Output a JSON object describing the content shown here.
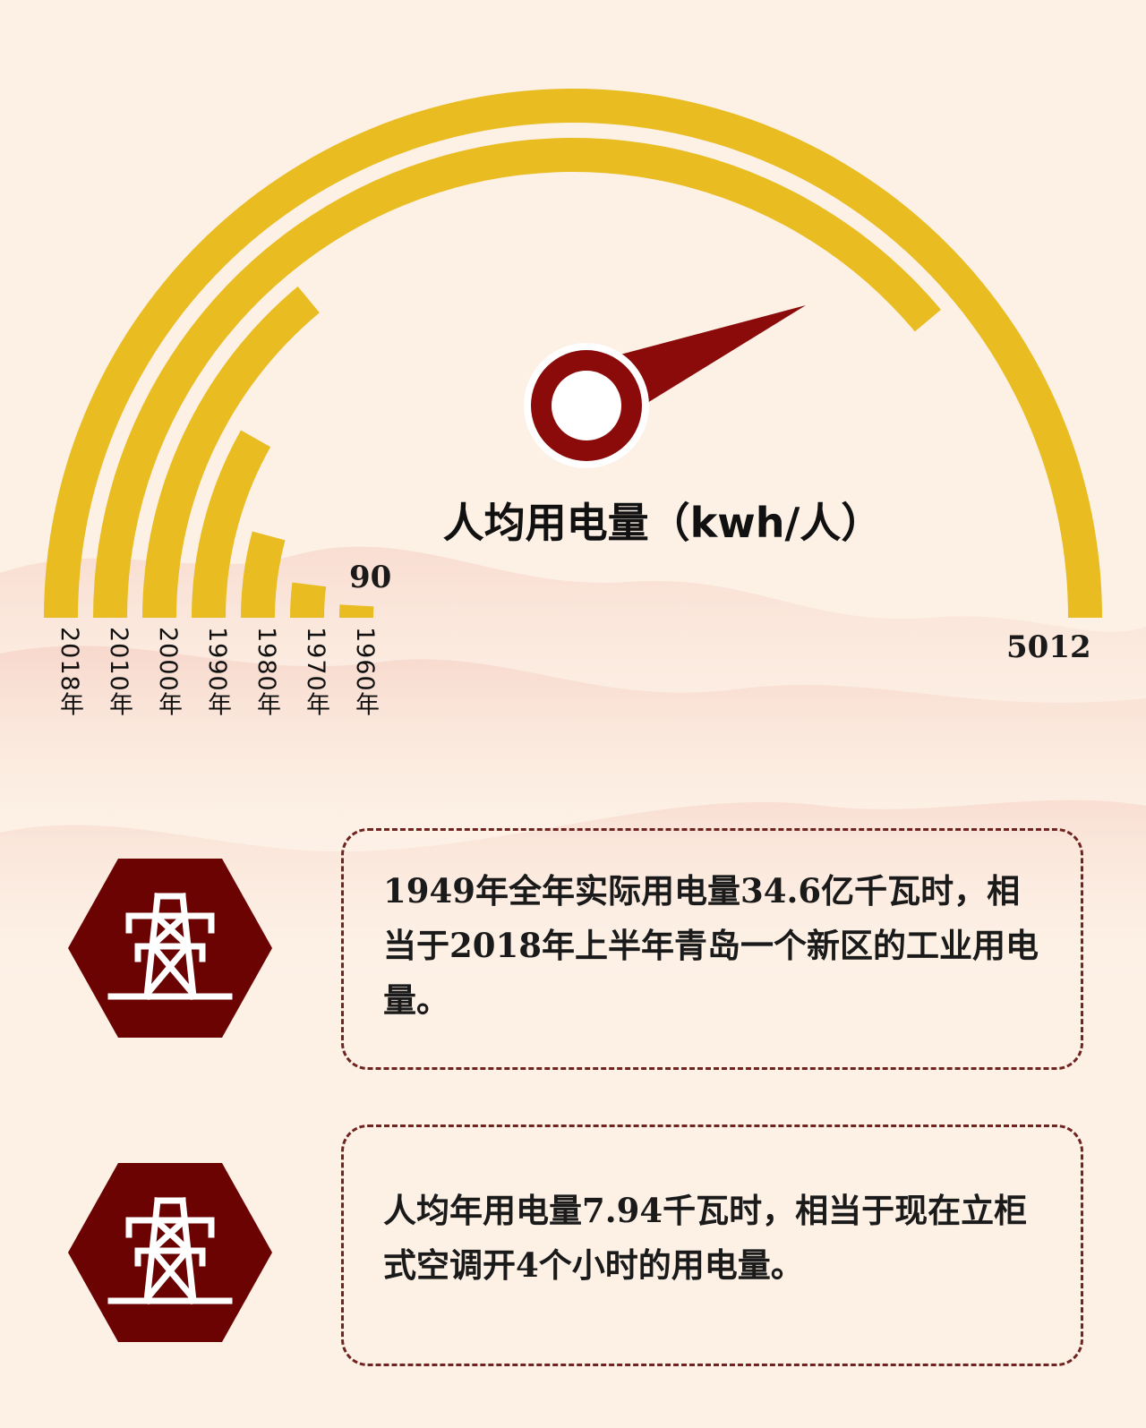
{
  "chart_data": {
    "type": "radial-bar",
    "title": "人均用电量（kwh/人）",
    "categories": [
      "2018年",
      "2010年",
      "2000年",
      "1990年",
      "1980年",
      "1970年",
      "1960年"
    ],
    "values": [
      5012,
      3900,
      1400,
      820,
      420,
      200,
      90
    ],
    "value_labels": {
      "2018年": "5012",
      "1960年": "90"
    },
    "scale_max": 5012,
    "bar_color": "#e9bc22",
    "gauge_color": "#8b0b0b"
  },
  "notes": [
    {
      "text": "1949年全年实际用电量34.6亿千瓦时，相当于2018年上半年青岛一个新区的工业用电量。",
      "icon": "power-tower-icon"
    },
    {
      "text": "人均年用电量7.94千瓦时，相当于现在立柜式空调开4个小时的用电量。",
      "icon": "power-tower-icon"
    }
  ],
  "colors": {
    "background": "#fdf1e6",
    "hexagon": "#6b0303",
    "border": "#6e2420"
  }
}
